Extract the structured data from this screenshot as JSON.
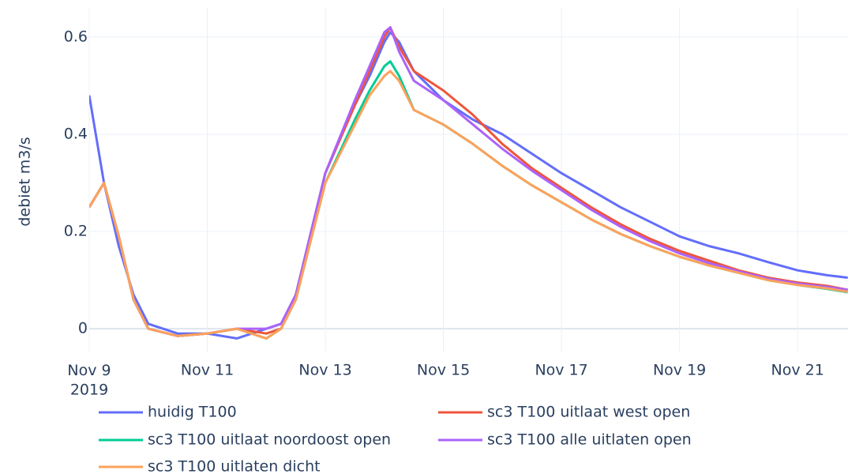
{
  "chart_data": {
    "type": "line",
    "y_label": "debiet m3/s",
    "x": [
      "2019-11-09T00:00",
      "2019-11-09T06:00",
      "2019-11-09T12:00",
      "2019-11-09T18:00",
      "2019-11-10T00:00",
      "2019-11-10T12:00",
      "2019-11-11T00:00",
      "2019-11-11T12:00",
      "2019-11-12T00:00",
      "2019-11-12T06:00",
      "2019-11-12T12:00",
      "2019-11-13T00:00",
      "2019-11-13T12:00",
      "2019-11-13T18:00",
      "2019-11-14T00:00",
      "2019-11-14T02:24",
      "2019-11-14T06:00",
      "2019-11-14T12:00",
      "2019-11-15T00:00",
      "2019-11-15T12:00",
      "2019-11-16T00:00",
      "2019-11-16T12:00",
      "2019-11-17T00:00",
      "2019-11-17T12:00",
      "2019-11-18T00:00",
      "2019-11-18T12:00",
      "2019-11-19T00:00",
      "2019-11-19T12:00",
      "2019-11-20T00:00",
      "2019-11-20T12:00",
      "2019-11-21T00:00",
      "2019-11-21T12:00",
      "2019-11-21T20:24"
    ],
    "series": [
      {
        "name": "huidig T100",
        "color": "#636efa",
        "values": [
          0.48,
          0.3,
          0.17,
          0.07,
          0.01,
          -0.01,
          -0.01,
          -0.02,
          0.0,
          0.01,
          0.07,
          0.32,
          0.46,
          0.52,
          0.59,
          0.61,
          0.59,
          0.53,
          0.47,
          0.43,
          0.4,
          0.36,
          0.32,
          0.285,
          0.25,
          0.22,
          0.19,
          0.17,
          0.155,
          0.137,
          0.12,
          0.11,
          0.105
        ]
      },
      {
        "name": "sc3 T100 uitlaat west open",
        "color": "#ef553b",
        "values": [
          0.25,
          0.3,
          0.19,
          0.06,
          0.0,
          -0.015,
          -0.01,
          0.0,
          -0.01,
          0.0,
          0.07,
          0.32,
          0.46,
          0.53,
          0.6,
          0.62,
          0.58,
          0.53,
          0.49,
          0.44,
          0.38,
          0.33,
          0.29,
          0.25,
          0.215,
          0.185,
          0.16,
          0.14,
          0.12,
          0.105,
          0.095,
          0.088,
          0.08
        ]
      },
      {
        "name": "sc3 T100 uitlaat noordoost open",
        "color": "#00cc96",
        "values": [
          0.25,
          0.3,
          0.19,
          0.06,
          0.0,
          -0.015,
          -0.01,
          0.0,
          -0.02,
          0.0,
          0.06,
          0.3,
          0.43,
          0.49,
          0.54,
          0.55,
          0.52,
          0.45,
          0.42,
          0.38,
          0.335,
          0.295,
          0.26,
          0.225,
          0.195,
          0.17,
          0.148,
          0.13,
          0.115,
          0.1,
          0.09,
          0.082,
          0.075
        ]
      },
      {
        "name": "sc3 T100 alle uitlaten open",
        "color": "#ab63fa",
        "values": [
          0.25,
          0.3,
          0.19,
          0.06,
          0.0,
          -0.015,
          -0.01,
          0.0,
          0.0,
          0.01,
          0.07,
          0.32,
          0.47,
          0.54,
          0.61,
          0.62,
          0.57,
          0.51,
          0.47,
          0.42,
          0.37,
          0.325,
          0.285,
          0.245,
          0.21,
          0.18,
          0.155,
          0.135,
          0.118,
          0.103,
          0.093,
          0.086,
          0.08
        ]
      },
      {
        "name": "sc3 T100 uitlaten dicht",
        "color": "#ffa15a",
        "values": [
          0.25,
          0.3,
          0.19,
          0.06,
          0.0,
          -0.015,
          -0.01,
          0.0,
          -0.02,
          0.0,
          0.06,
          0.3,
          0.42,
          0.48,
          0.52,
          0.53,
          0.51,
          0.45,
          0.42,
          0.38,
          0.335,
          0.295,
          0.26,
          0.225,
          0.195,
          0.17,
          0.148,
          0.13,
          0.115,
          0.1,
          0.09,
          0.083,
          0.076
        ]
      }
    ],
    "xlim": [
      "2019-11-09T00:00",
      "2019-11-21T20:30"
    ],
    "xticks": [
      {
        "value": "2019-11-09T00:00",
        "label": "Nov 9\n2019"
      },
      {
        "value": "2019-11-11T00:00",
        "label": "Nov 11"
      },
      {
        "value": "2019-11-13T00:00",
        "label": "Nov 13"
      },
      {
        "value": "2019-11-15T00:00",
        "label": "Nov 15"
      },
      {
        "value": "2019-11-17T00:00",
        "label": "Nov 17"
      },
      {
        "value": "2019-11-19T00:00",
        "label": "Nov 19"
      },
      {
        "value": "2019-11-21T00:00",
        "label": "Nov 21"
      }
    ],
    "ylim": [
      -0.047,
      0.66
    ],
    "yticks": [
      0,
      0.2,
      0.4,
      0.6
    ],
    "grid": true,
    "legend": "bottom"
  }
}
